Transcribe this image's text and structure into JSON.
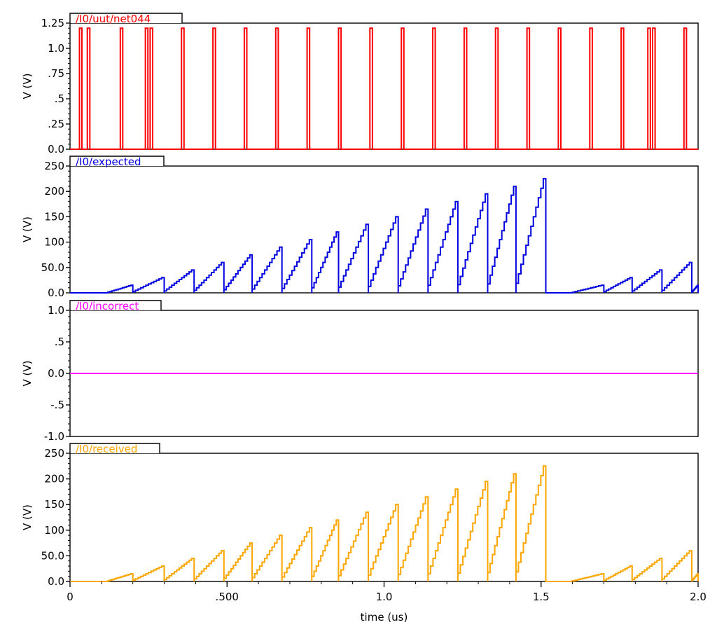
{
  "x_axis": {
    "label": "time (us)",
    "range": [
      0,
      2.0
    ],
    "ticks": [
      {
        "value": 0,
        "label": "0"
      },
      {
        "value": 0.5,
        "label": ".500"
      },
      {
        "value": 1.0,
        "label": "1.0"
      },
      {
        "value": 1.5,
        "label": "1.5"
      },
      {
        "value": 2.0,
        "label": "2.0"
      }
    ]
  },
  "chart_data": [
    {
      "type": "line",
      "signal": "/I0/uut/net044",
      "color": "#ff0000",
      "ylabel": "V (V)",
      "ylim": [
        0,
        1.25
      ],
      "yticks": [
        {
          "value": 0,
          "label": "0.0"
        },
        {
          "value": 0.25,
          "label": ".25"
        },
        {
          "value": 0.5,
          "label": ".5"
        },
        {
          "value": 0.75,
          "label": ".75"
        },
        {
          "value": 1.0,
          "label": "1.0"
        },
        {
          "value": 1.25,
          "label": "1.25"
        }
      ],
      "pulse_high": 1.2,
      "pulse_width_us": 0.008,
      "pulse_starts_us": [
        0.055,
        0.16,
        0.255,
        0.355,
        0.455,
        0.555,
        0.655,
        0.755,
        0.855,
        0.955,
        1.055,
        1.155,
        1.255,
        1.355,
        1.455,
        1.555,
        1.655,
        1.755,
        1.855,
        1.955
      ],
      "double_pulse_starts_us": [
        0.03,
        0.24,
        1.84
      ]
    },
    {
      "type": "line",
      "signal": "/I0/expected",
      "color": "#0000e0",
      "ylabel": "V (V)",
      "ylim": [
        0,
        250
      ],
      "yticks": [
        {
          "value": 0,
          "label": "0.0"
        },
        {
          "value": 50,
          "label": "50.0"
        },
        {
          "value": 100,
          "label": "100"
        },
        {
          "value": 150,
          "label": "150"
        },
        {
          "value": 200,
          "label": "200"
        },
        {
          "value": 250,
          "label": "250"
        }
      ],
      "ramps": [
        {
          "start": 0.12,
          "end": 0.2,
          "peak": 15
        },
        {
          "start": 0.2,
          "end": 0.3,
          "peak": 30
        },
        {
          "start": 0.3,
          "end": 0.395,
          "peak": 45
        },
        {
          "start": 0.395,
          "end": 0.49,
          "peak": 60
        },
        {
          "start": 0.49,
          "end": 0.58,
          "peak": 75
        },
        {
          "start": 0.58,
          "end": 0.675,
          "peak": 90
        },
        {
          "start": 0.675,
          "end": 0.77,
          "peak": 105
        },
        {
          "start": 0.77,
          "end": 0.855,
          "peak": 120
        },
        {
          "start": 0.855,
          "end": 0.95,
          "peak": 135
        },
        {
          "start": 0.95,
          "end": 1.045,
          "peak": 150
        },
        {
          "start": 1.045,
          "end": 1.14,
          "peak": 165
        },
        {
          "start": 1.14,
          "end": 1.235,
          "peak": 180
        },
        {
          "start": 1.235,
          "end": 1.33,
          "peak": 195
        },
        {
          "start": 1.33,
          "end": 1.42,
          "peak": 210
        },
        {
          "start": 1.42,
          "end": 1.515,
          "peak": 225
        },
        {
          "start": 1.6,
          "end": 1.7,
          "peak": 15
        },
        {
          "start": 1.7,
          "end": 1.79,
          "peak": 30
        },
        {
          "start": 1.79,
          "end": 1.885,
          "peak": 45
        },
        {
          "start": 1.885,
          "end": 1.98,
          "peak": 60
        },
        {
          "start": 1.98,
          "end": 2.0,
          "peak": 15
        }
      ]
    },
    {
      "type": "line",
      "signal": "/I0/incorrect",
      "color": "#ff00ff",
      "ylabel": "V (V)",
      "ylim": [
        -1.0,
        1.0
      ],
      "yticks": [
        {
          "value": -1.0,
          "label": "-1.0"
        },
        {
          "value": -0.5,
          "label": "-.5"
        },
        {
          "value": 0,
          "label": "0.0"
        },
        {
          "value": 0.5,
          "label": ".5"
        },
        {
          "value": 1.0,
          "label": "1.0"
        }
      ],
      "x": [
        0,
        2.0
      ],
      "y": [
        0,
        0
      ]
    },
    {
      "type": "line",
      "signal": "/I0/received",
      "color": "#ffa500",
      "ylabel": "V (V)",
      "ylim": [
        0,
        250
      ],
      "yticks": [
        {
          "value": 0,
          "label": "0.0"
        },
        {
          "value": 50,
          "label": "50.0"
        },
        {
          "value": 100,
          "label": "100"
        },
        {
          "value": 150,
          "label": "150"
        },
        {
          "value": 200,
          "label": "200"
        },
        {
          "value": 250,
          "label": "250"
        }
      ],
      "ramps": [
        {
          "start": 0.12,
          "end": 0.2,
          "peak": 15
        },
        {
          "start": 0.2,
          "end": 0.3,
          "peak": 30
        },
        {
          "start": 0.3,
          "end": 0.395,
          "peak": 45
        },
        {
          "start": 0.395,
          "end": 0.49,
          "peak": 60
        },
        {
          "start": 0.49,
          "end": 0.58,
          "peak": 75
        },
        {
          "start": 0.58,
          "end": 0.675,
          "peak": 90
        },
        {
          "start": 0.675,
          "end": 0.77,
          "peak": 105
        },
        {
          "start": 0.77,
          "end": 0.855,
          "peak": 120
        },
        {
          "start": 0.855,
          "end": 0.95,
          "peak": 135
        },
        {
          "start": 0.95,
          "end": 1.045,
          "peak": 150
        },
        {
          "start": 1.045,
          "end": 1.14,
          "peak": 165
        },
        {
          "start": 1.14,
          "end": 1.235,
          "peak": 180
        },
        {
          "start": 1.235,
          "end": 1.33,
          "peak": 195
        },
        {
          "start": 1.33,
          "end": 1.42,
          "peak": 210
        },
        {
          "start": 1.42,
          "end": 1.515,
          "peak": 225
        },
        {
          "start": 1.6,
          "end": 1.7,
          "peak": 15
        },
        {
          "start": 1.7,
          "end": 1.79,
          "peak": 30
        },
        {
          "start": 1.79,
          "end": 1.885,
          "peak": 45
        },
        {
          "start": 1.885,
          "end": 1.98,
          "peak": 60
        },
        {
          "start": 1.98,
          "end": 2.0,
          "peak": 15
        }
      ]
    }
  ]
}
